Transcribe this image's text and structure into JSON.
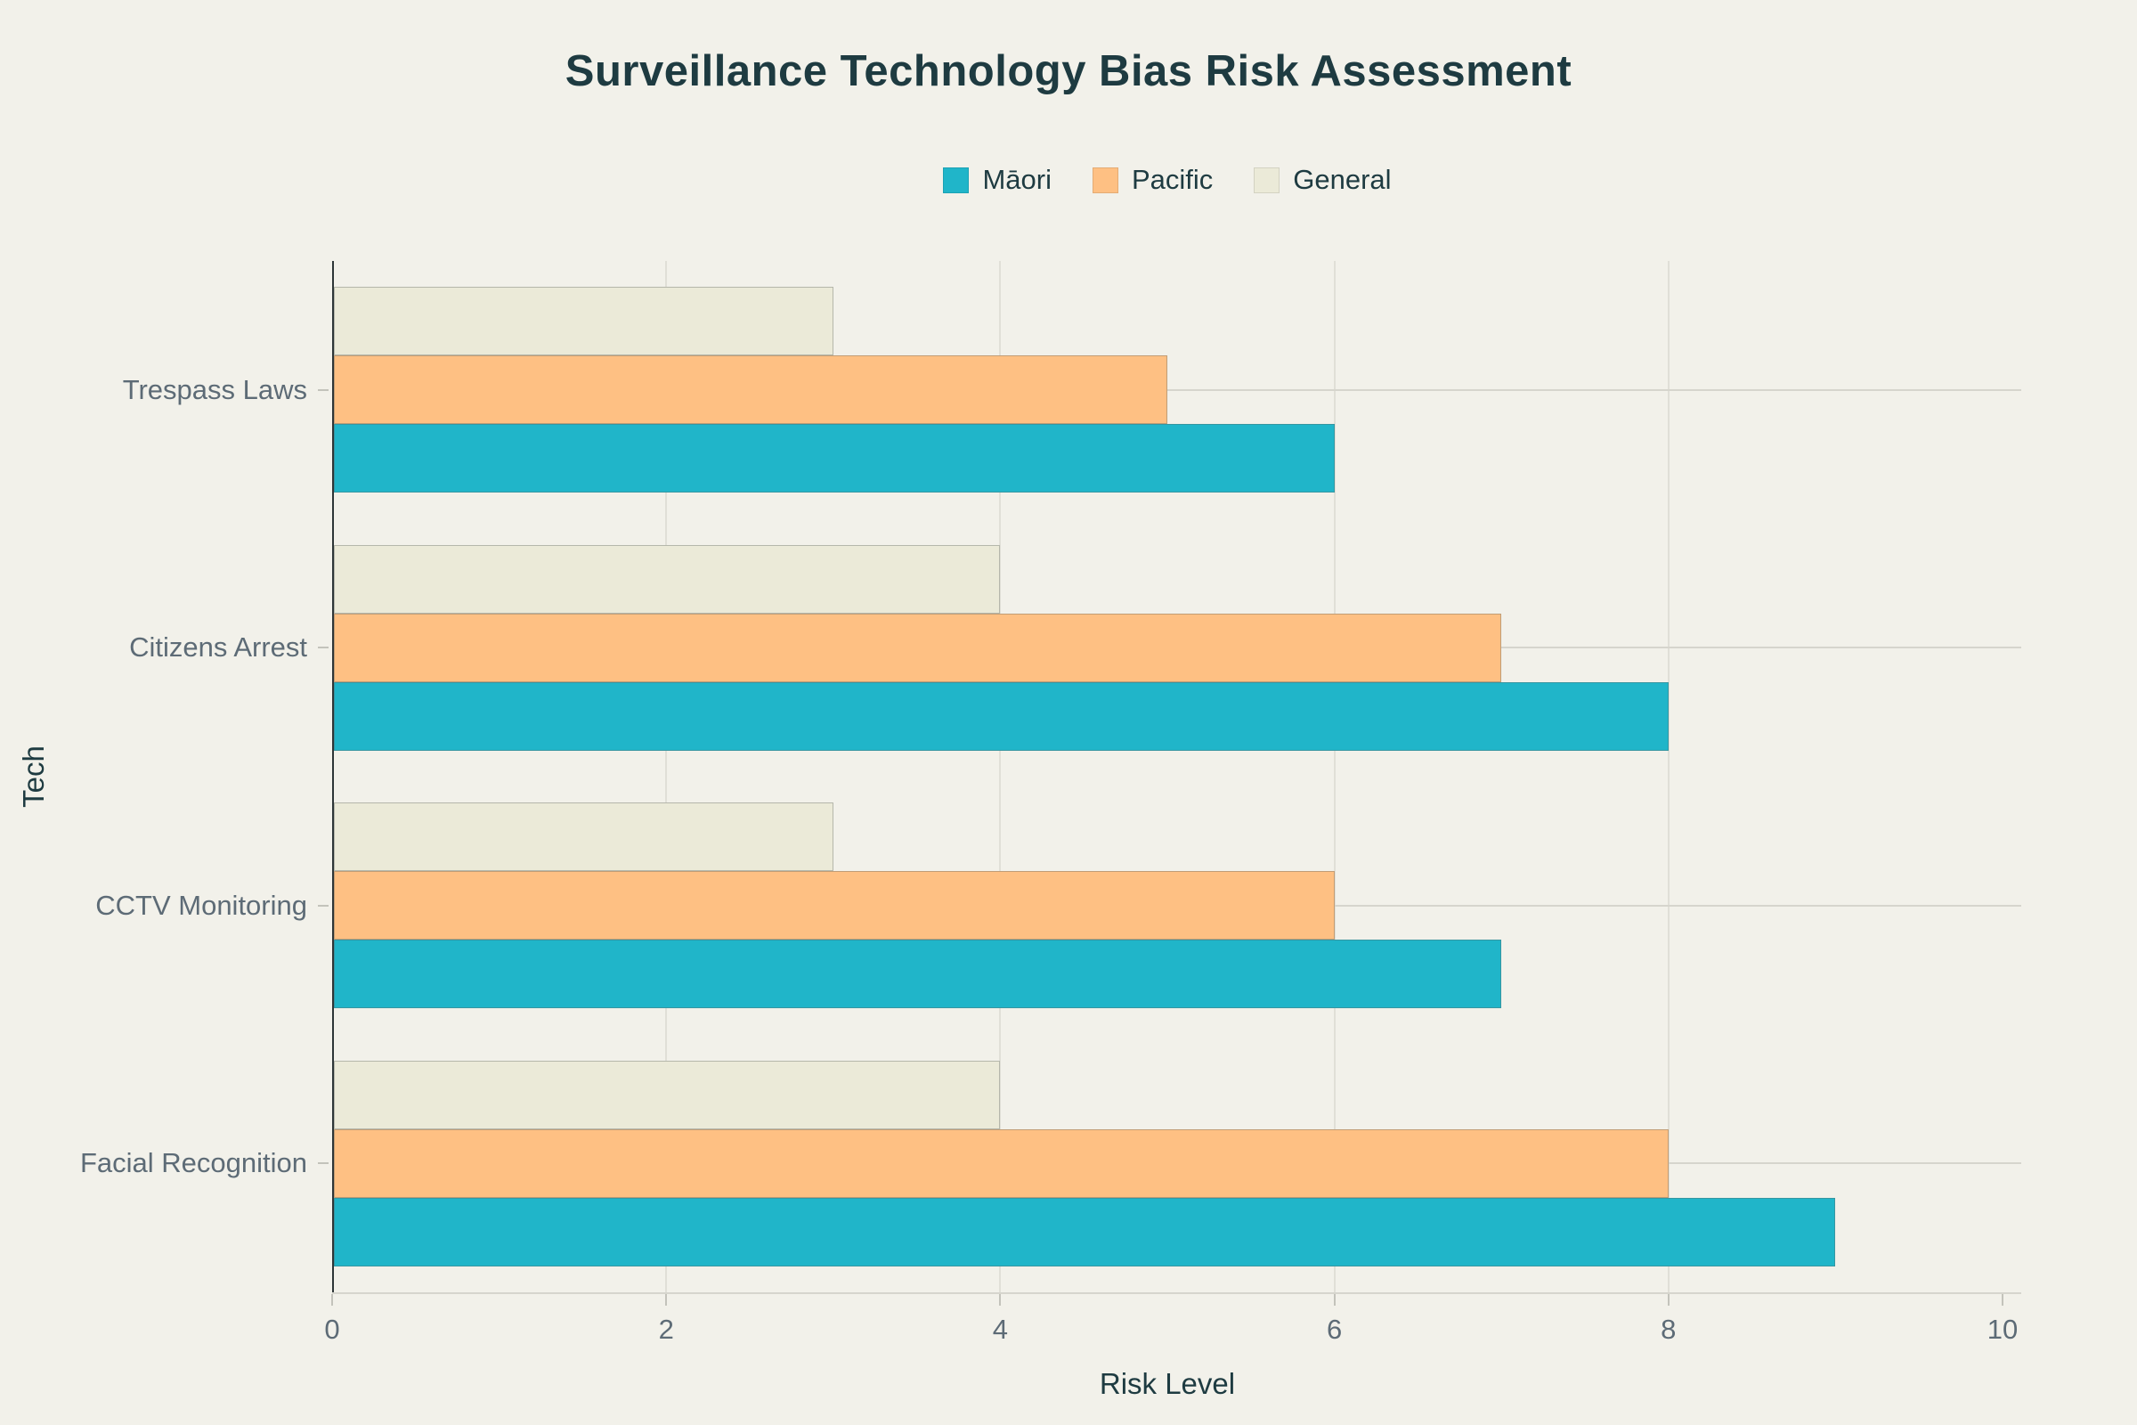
{
  "chart_data": {
    "type": "bar",
    "orientation": "horizontal",
    "title": "Surveillance Technology Bias Risk Assessment",
    "categories": [
      "Trespass Laws",
      "Citizens Arrest",
      "CCTV Monitoring",
      "Facial Recognition"
    ],
    "series": [
      {
        "name": "Māori",
        "color": "#20b5c9",
        "values": [
          6,
          8,
          7,
          9
        ]
      },
      {
        "name": "Pacific",
        "color": "#fec083",
        "values": [
          5,
          7,
          6,
          8
        ]
      },
      {
        "name": "General",
        "color": "#ebead8",
        "values": [
          3,
          4,
          3,
          4
        ]
      }
    ],
    "xlabel": "Risk Level",
    "ylabel": "Tech",
    "xlim": [
      0,
      10
    ],
    "xticks": [
      0,
      2,
      4,
      6,
      8,
      10
    ],
    "x_gridlines_at": [
      2,
      4,
      6,
      8
    ],
    "y_gridlines": "one per category center",
    "legend_position": "top-center",
    "bar_display_order_top_to_bottom": [
      "General",
      "Pacific",
      "Māori"
    ],
    "grid": true
  },
  "style": {
    "background": "#f2f1ea",
    "title_color": "#1e3b41",
    "axis_title_color": "#1e3b41",
    "tick_label_color": "#5d6b76",
    "gridline_color": "#d6d5cd",
    "zeroline_color": "#2d3537"
  }
}
